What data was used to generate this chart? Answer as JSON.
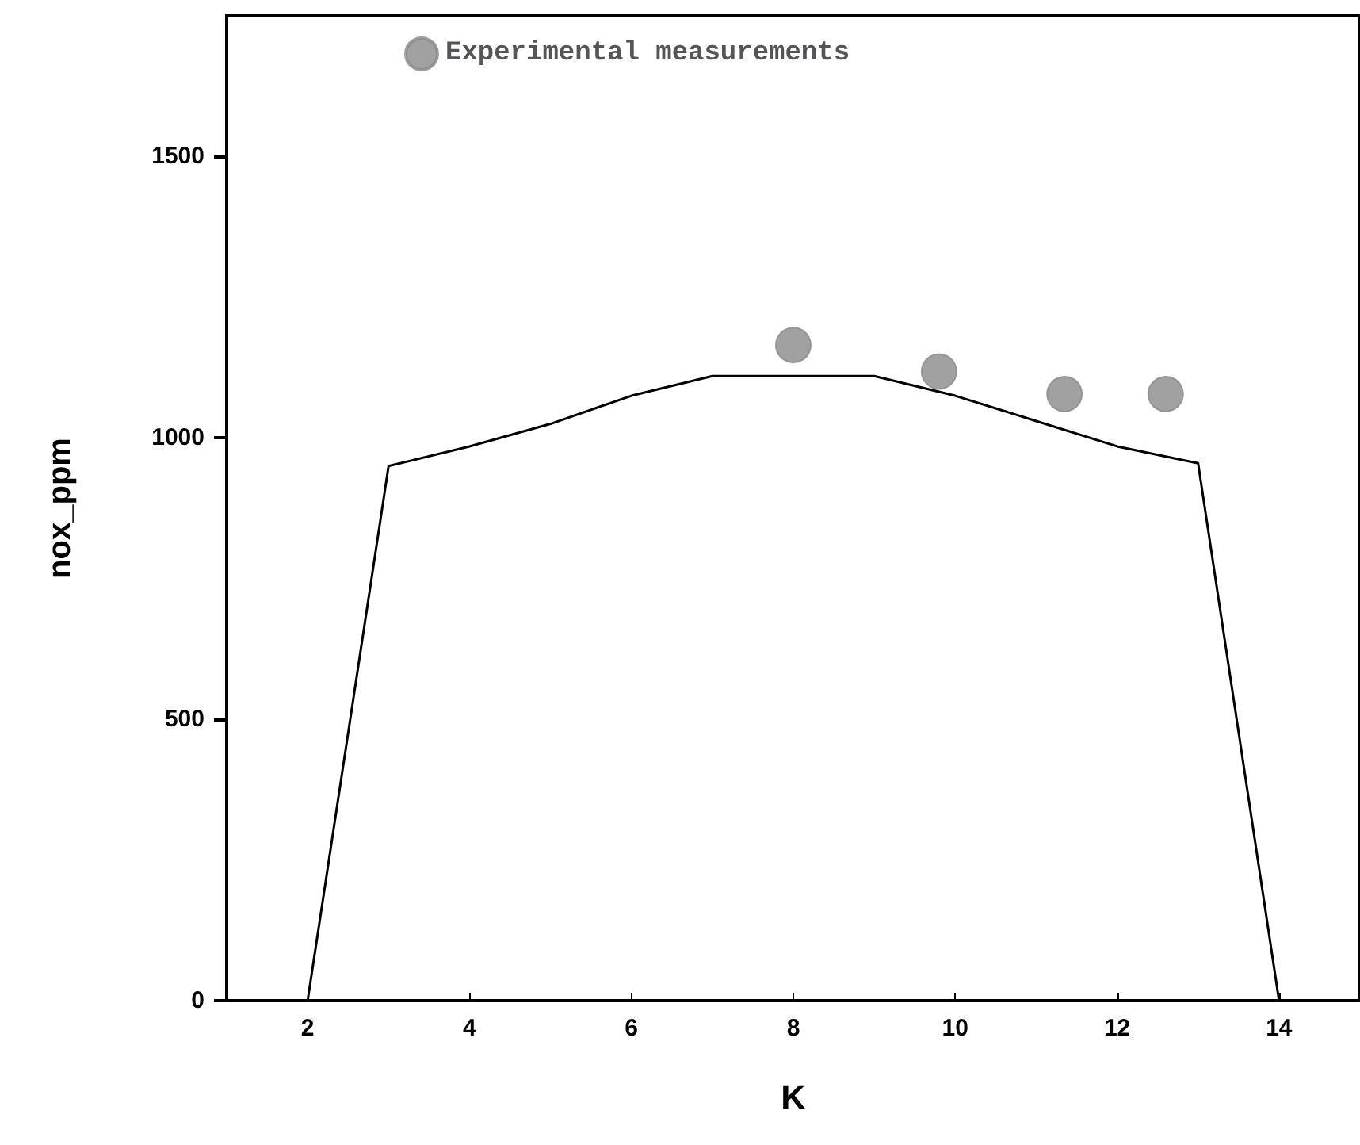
{
  "chart_data": {
    "type": "line",
    "xlabel": "K",
    "ylabel": "nox_ppm",
    "xlim": [
      1,
      15
    ],
    "xticks": [
      2,
      4,
      6,
      8,
      10,
      12,
      14
    ],
    "ylim": [
      0,
      1750
    ],
    "yticks": [
      0,
      500,
      1000,
      1500
    ],
    "grid": false,
    "legend": "top",
    "series": [
      {
        "color": "#000000",
        "marker": "none",
        "x": [
          2,
          3,
          4,
          5,
          6,
          7,
          8,
          9,
          10,
          11,
          12,
          13,
          14
        ],
        "values": [
          0,
          950,
          985,
          1025,
          1075,
          1110,
          1110,
          1110,
          1075,
          1030,
          985,
          955,
          0
        ]
      },
      {
        "type": "scatter",
        "name": "Experimental measurements",
        "color": "#8a8a8a",
        "marker": "circle",
        "x": [
          8,
          9.8,
          11.35,
          12.6
        ],
        "values": [
          1165,
          1118,
          1078,
          1078
        ]
      }
    ]
  }
}
